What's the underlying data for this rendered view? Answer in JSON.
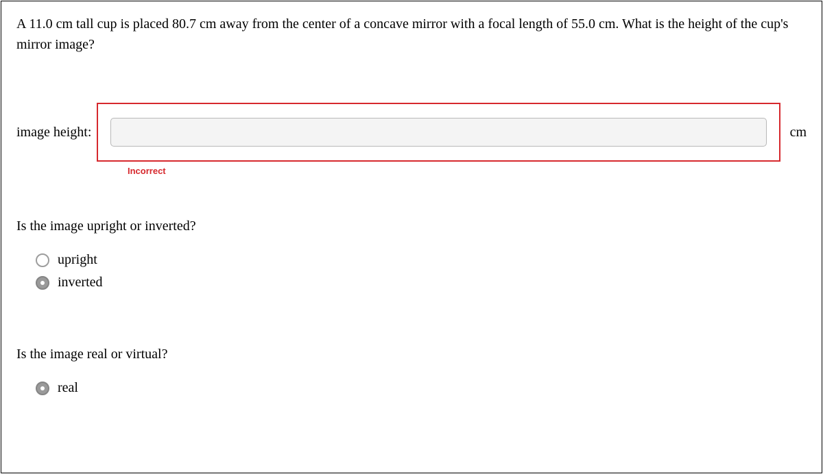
{
  "question": "A 11.0 cm tall cup is placed 80.7 cm away from the center of a concave mirror with a focal length of 55.0 cm. What is the height of the cup's mirror image?",
  "answer": {
    "label": "image height:",
    "value": "",
    "placeholder": "",
    "unit": "cm",
    "feedback": "Incorrect",
    "border_color": "#d6282d"
  },
  "sub1": {
    "prompt": "Is the image upright or inverted?",
    "options": [
      {
        "label": "upright",
        "selected": false
      },
      {
        "label": "inverted",
        "selected": true
      }
    ]
  },
  "sub2": {
    "prompt": "Is the image real or virtual?",
    "options": [
      {
        "label": "real",
        "selected": true
      }
    ]
  }
}
